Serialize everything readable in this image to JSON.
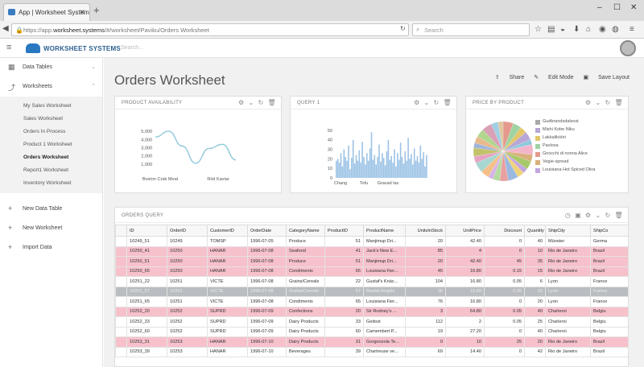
{
  "browser": {
    "tab_title": "App | Worksheet Systems",
    "url_prefix": "https://app.",
    "url_domain": "worksheet.systems",
    "url_path": "/#/worksheet/Paviku/Orders Worksheet",
    "search_placeholder": "Search"
  },
  "app": {
    "brand": "WORKSHEET SYSTEMS",
    "search_placeholder": "Search..."
  },
  "sidebar": {
    "data_tables": "Data Tables",
    "worksheets": "Worksheets",
    "sub_items": [
      "My Sales Worksheet",
      "Sales Worksheet",
      "Orders In Process",
      "Product 1 Worksheet",
      "Orders Worksheet",
      "Report1 Worksheet",
      "Inventory Worksheet"
    ],
    "new_data_table": "New Data Table",
    "new_worksheet": "New Worksheet",
    "import_data": "Import Data"
  },
  "main": {
    "title": "Orders Worksheet",
    "share": "Share",
    "edit_mode": "Edit Mode",
    "save_layout": "Save Layout"
  },
  "cards": {
    "availability": "PRODUCT AVAILABILITY",
    "query1": "QUERY 1",
    "price": "PRICE BY PRODUCT",
    "orders_query": "ORDERS QUERY"
  },
  "chart_data": [
    {
      "type": "line",
      "title": "PRODUCT AVAILABILITY",
      "x_tick_labels": [
        "Boston Crab Meat",
        "Röd Kaviar"
      ],
      "y_ticks": [
        "5,000",
        "4,000",
        "3,000",
        "2,000",
        "1,000"
      ],
      "ylim": [
        0,
        5500
      ],
      "x": [
        0,
        1,
        2,
        3,
        4,
        5,
        6
      ],
      "values": [
        4300,
        5000,
        3200,
        1100,
        2900,
        3400,
        1500
      ],
      "color": "#8fc9db"
    },
    {
      "type": "bar",
      "title": "QUERY 1",
      "x_tick_labels": [
        "Chang",
        "Tofu",
        "Gravad lax"
      ],
      "y_ticks": [
        "50",
        "40",
        "30",
        "20",
        "10",
        "0"
      ],
      "ylim": [
        0,
        55
      ],
      "values": [
        18,
        20,
        16,
        26,
        12,
        30,
        22,
        18,
        34,
        9,
        21,
        40,
        15,
        24,
        18,
        29,
        16,
        38,
        22,
        14,
        26,
        18,
        31,
        48,
        19,
        24,
        14,
        22,
        35,
        17,
        26,
        21,
        13,
        28,
        40,
        19,
        23,
        16,
        30,
        12,
        26,
        19,
        37,
        22,
        15,
        28,
        18,
        42,
        20,
        25,
        14,
        31,
        18,
        23,
        16,
        34,
        20,
        27,
        12,
        24
      ],
      "color": "#9cc3e6"
    },
    {
      "type": "pie",
      "title": "PRICE BY PRODUCT",
      "legend": [
        "Gudbrandsdalsost",
        "Mishi Kobe Niku",
        "Lakkalikööri",
        "Pavlova",
        "Gnocchi di nonna Alice",
        "Vegie-spread",
        "Louisiana Hot Spiced Okra"
      ],
      "legend_colors": [
        "#a8a8a8",
        "#b7a6d6",
        "#e4c66a",
        "#9fd3a2",
        "#e39a8c",
        "#d9b07a",
        "#c3a6e0"
      ],
      "values": [
        6,
        5,
        4,
        5,
        3,
        6,
        4,
        5,
        3,
        4,
        6,
        5,
        4,
        3,
        5,
        6,
        4,
        5,
        3,
        4,
        5,
        6,
        4,
        3
      ],
      "colors": [
        "#e39a8c",
        "#9fd3a2",
        "#e4c66a",
        "#b7a6d6",
        "#8fc9db",
        "#f2b5c9",
        "#d9b07a",
        "#a8c96a",
        "#c3a6e0",
        "#f0d27a",
        "#9ab8e0",
        "#e8a0a0",
        "#b5dba0",
        "#d6b3e6",
        "#f4c08a",
        "#a7d7d0",
        "#e6a3c2",
        "#c2c26b",
        "#9fb4d9",
        "#e8b98c",
        "#b0d68f",
        "#d9a0b6",
        "#a0cfe3",
        "#e0c7a0"
      ]
    }
  ],
  "table": {
    "columns": [
      "ID",
      "OrderID",
      "CustomerID",
      "OrderDate",
      "CategoryName",
      "ProductID",
      "ProductName",
      "UnitsInStock",
      "UnitPrice",
      "Discount",
      "Quantity",
      "ShipCity",
      "ShipCo"
    ],
    "rows": [
      {
        "style": "",
        "cells": [
          "10249_51",
          "10249",
          "TOMSP",
          "1996-07-05",
          "Produce",
          "51",
          "Manjimup Dri...",
          "20",
          "42.40",
          "0",
          "40",
          "Münster",
          "Germa"
        ]
      },
      {
        "style": "pink",
        "cells": [
          "10250_41",
          "10250",
          "HANAR",
          "1996-07-08",
          "Seafood",
          "41",
          "Jack's New E...",
          "85",
          "4",
          "0",
          "10",
          "Rio de Janeiro",
          "Brazil"
        ]
      },
      {
        "style": "pink",
        "cells": [
          "10250_51",
          "10250",
          "HANAR",
          "1996-07-08",
          "Produce",
          "51",
          "Manjimup Dri...",
          "20",
          "42.40",
          "45",
          "35",
          "Rio de Janeiro",
          "Brazil"
        ]
      },
      {
        "style": "pink",
        "cells": [
          "10250_65",
          "10250",
          "HANAR",
          "1996-07-08",
          "Condiments",
          "65",
          "Louisiana Fier...",
          "45",
          "16.80",
          "0.15",
          "15",
          "Rio de Janeiro",
          "Brazil"
        ]
      },
      {
        "style": "",
        "cells": [
          "10251_22",
          "10251",
          "VICTE",
          "1996-07-08",
          "Grains/Cereals",
          "22",
          "Gustaf's Knäc...",
          "104",
          "16.80",
          "0.05",
          "6",
          "Lyon",
          "France"
        ]
      },
      {
        "style": "grey",
        "cells": [
          "10251_57",
          "10251",
          "VICTE",
          "1996-07-08",
          "Grains/Cereals",
          "57",
          "Ravioli Angelo",
          "36",
          "15.60",
          "0.05",
          "15",
          "Lyon",
          "France"
        ]
      },
      {
        "style": "",
        "cells": [
          "10251_65",
          "10251",
          "VICTE",
          "1996-07-08",
          "Condiments",
          "65",
          "Louisiana Fier...",
          "76",
          "16.80",
          "0",
          "20",
          "Lyon",
          "France"
        ]
      },
      {
        "style": "pink",
        "cells": [
          "10252_20",
          "10252",
          "SUPRD",
          "1996-07-09",
          "Confections",
          "20",
          "Sir Rodney's ...",
          "3",
          "64.80",
          "0.05",
          "40",
          "Charleroi",
          "Belgiu"
        ]
      },
      {
        "style": "",
        "cells": [
          "10252_33",
          "10252",
          "SUPRD",
          "1996-07-09",
          "Dairy Products",
          "33",
          "Geitost",
          "112",
          "2",
          "0.05",
          "25",
          "Charleroi",
          "Belgiu"
        ]
      },
      {
        "style": "",
        "cells": [
          "10252_60",
          "10252",
          "SUPRD",
          "1996-07-09",
          "Dairy Products",
          "60",
          "Camembert P...",
          "19",
          "27.20",
          "0",
          "40",
          "Charleroi",
          "Belgiu"
        ]
      },
      {
        "style": "pink",
        "cells": [
          "10253_31",
          "10253",
          "HANAR",
          "1996-07-10",
          "Dairy Products",
          "31",
          "Gorgonzola Te...",
          "0",
          "10",
          "25",
          "20",
          "Rio de Janeiro",
          "Brazil"
        ]
      },
      {
        "style": "",
        "cells": [
          "10253_39",
          "10253",
          "HANAR",
          "1996-07-10",
          "Beverages",
          "39",
          "Chartreuse ve...",
          "69",
          "14.40",
          "0",
          "42",
          "Rio de Janeiro",
          "Brazil"
        ]
      }
    ]
  }
}
